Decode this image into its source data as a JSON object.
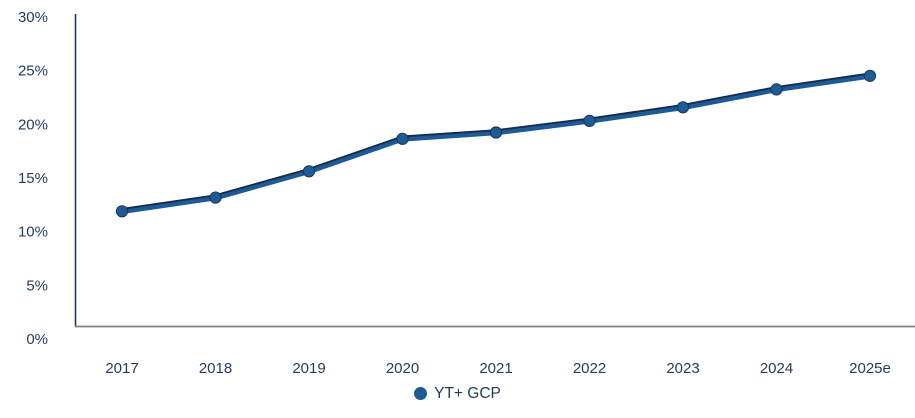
{
  "chart_data": {
    "type": "line",
    "categories": [
      "2017",
      "2018",
      "2019",
      "2020",
      "2021",
      "2022",
      "2023",
      "2024",
      "2025e"
    ],
    "series": [
      {
        "name": "YT+ GCP",
        "values": [
          11.5,
          12.8,
          15.3,
          18.4,
          19.0,
          20.1,
          21.4,
          23.1,
          24.4
        ]
      }
    ],
    "title": "",
    "xlabel": "",
    "ylabel": "",
    "ylim": [
      0,
      30
    ],
    "y_ticks": [
      0,
      5,
      10,
      15,
      20,
      25,
      30
    ],
    "y_tick_labels": [
      "0%",
      "5%",
      "10%",
      "15%",
      "20%",
      "25%",
      "30%"
    ],
    "grid": false,
    "legend_position": "bottom-center",
    "colors": {
      "line": "#1E5A96",
      "line_edge": "#142C49",
      "marker": "#1E5A96",
      "tick_label": "#1F3C5F",
      "y_axis_line": "#1C3A54",
      "x_axis_line": "#7E8489",
      "background": "#FFFFFF"
    }
  }
}
